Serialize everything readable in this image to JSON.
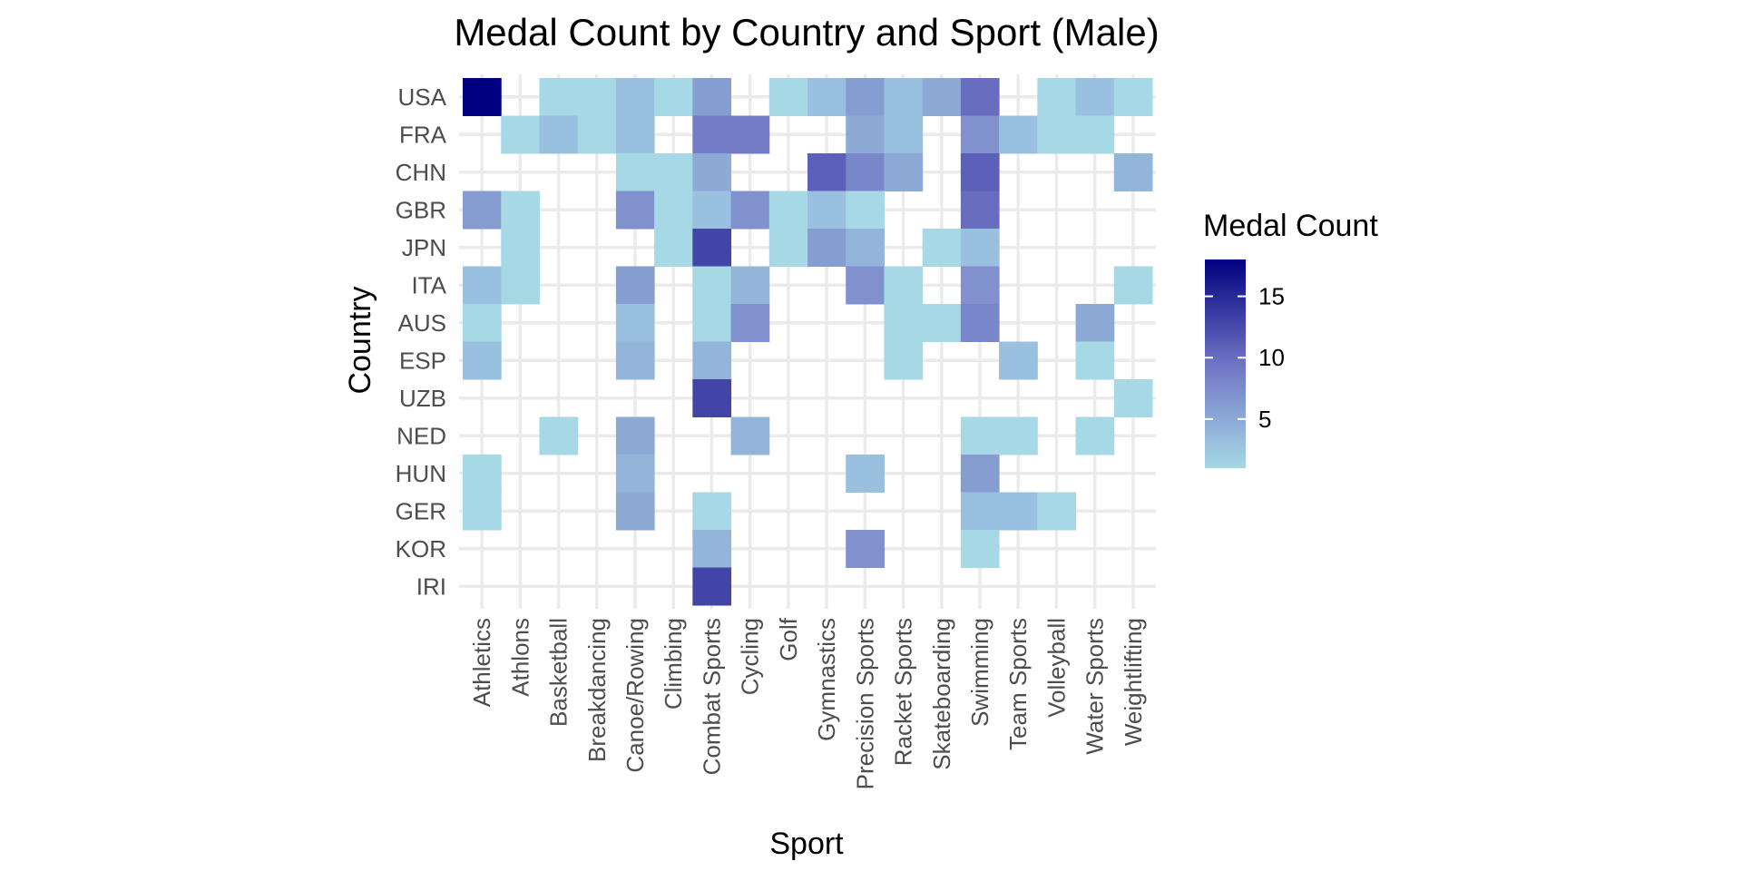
{
  "chart_data": {
    "type": "heatmap",
    "title": "Medal Count by Country and Sport (Male)",
    "xlabel": "Sport",
    "ylabel": "Country",
    "x": [
      "Athletics",
      "Athlons",
      "Basketball",
      "Breakdancing",
      "Canoe/Rowing",
      "Climbing",
      "Combat Sports",
      "Cycling",
      "Golf",
      "Gymnastics",
      "Precision Sports",
      "Racket Sports",
      "Skateboarding",
      "Swimming",
      "Team Sports",
      "Volleyball",
      "Water Sports",
      "Weightlifting"
    ],
    "y": [
      "USA",
      "FRA",
      "CHN",
      "GBR",
      "JPN",
      "ITA",
      "AUS",
      "ESP",
      "UZB",
      "NED",
      "HUN",
      "GER",
      "KOR",
      "IRI"
    ],
    "cells": [
      {
        "country": "USA",
        "sport": "Athletics",
        "value": 18
      },
      {
        "country": "USA",
        "sport": "Basketball",
        "value": 1
      },
      {
        "country": "USA",
        "sport": "Breakdancing",
        "value": 1
      },
      {
        "country": "USA",
        "sport": "Canoe/Rowing",
        "value": 3
      },
      {
        "country": "USA",
        "sport": "Climbing",
        "value": 1
      },
      {
        "country": "USA",
        "sport": "Combat Sports",
        "value": 6
      },
      {
        "country": "USA",
        "sport": "Golf",
        "value": 1
      },
      {
        "country": "USA",
        "sport": "Gymnastics",
        "value": 3
      },
      {
        "country": "USA",
        "sport": "Precision Sports",
        "value": 6
      },
      {
        "country": "USA",
        "sport": "Racket Sports",
        "value": 3
      },
      {
        "country": "USA",
        "sport": "Skateboarding",
        "value": 5
      },
      {
        "country": "USA",
        "sport": "Swimming",
        "value": 10
      },
      {
        "country": "USA",
        "sport": "Volleyball",
        "value": 1
      },
      {
        "country": "USA",
        "sport": "Water Sports",
        "value": 3
      },
      {
        "country": "USA",
        "sport": "Weightlifting",
        "value": 1
      },
      {
        "country": "FRA",
        "sport": "Athlons",
        "value": 1
      },
      {
        "country": "FRA",
        "sport": "Basketball",
        "value": 3
      },
      {
        "country": "FRA",
        "sport": "Breakdancing",
        "value": 1
      },
      {
        "country": "FRA",
        "sport": "Canoe/Rowing",
        "value": 3
      },
      {
        "country": "FRA",
        "sport": "Combat Sports",
        "value": 9
      },
      {
        "country": "FRA",
        "sport": "Cycling",
        "value": 9
      },
      {
        "country": "FRA",
        "sport": "Precision Sports",
        "value": 5
      },
      {
        "country": "FRA",
        "sport": "Racket Sports",
        "value": 3
      },
      {
        "country": "FRA",
        "sport": "Swimming",
        "value": 7
      },
      {
        "country": "FRA",
        "sport": "Team Sports",
        "value": 3
      },
      {
        "country": "FRA",
        "sport": "Volleyball",
        "value": 1
      },
      {
        "country": "FRA",
        "sport": "Water Sports",
        "value": 1
      },
      {
        "country": "CHN",
        "sport": "Canoe/Rowing",
        "value": 1
      },
      {
        "country": "CHN",
        "sport": "Climbing",
        "value": 1
      },
      {
        "country": "CHN",
        "sport": "Combat Sports",
        "value": 5
      },
      {
        "country": "CHN",
        "sport": "Gymnastics",
        "value": 11
      },
      {
        "country": "CHN",
        "sport": "Precision Sports",
        "value": 8
      },
      {
        "country": "CHN",
        "sport": "Racket Sports",
        "value": 5
      },
      {
        "country": "CHN",
        "sport": "Swimming",
        "value": 11
      },
      {
        "country": "CHN",
        "sport": "Weightlifting",
        "value": 4
      },
      {
        "country": "GBR",
        "sport": "Athletics",
        "value": 6
      },
      {
        "country": "GBR",
        "sport": "Athlons",
        "value": 1
      },
      {
        "country": "GBR",
        "sport": "Canoe/Rowing",
        "value": 7
      },
      {
        "country": "GBR",
        "sport": "Climbing",
        "value": 1
      },
      {
        "country": "GBR",
        "sport": "Combat Sports",
        "value": 3
      },
      {
        "country": "GBR",
        "sport": "Cycling",
        "value": 7
      },
      {
        "country": "GBR",
        "sport": "Golf",
        "value": 1
      },
      {
        "country": "GBR",
        "sport": "Gymnastics",
        "value": 3
      },
      {
        "country": "GBR",
        "sport": "Precision Sports",
        "value": 1
      },
      {
        "country": "GBR",
        "sport": "Swimming",
        "value": 10
      },
      {
        "country": "JPN",
        "sport": "Athlons",
        "value": 1
      },
      {
        "country": "JPN",
        "sport": "Climbing",
        "value": 1
      },
      {
        "country": "JPN",
        "sport": "Combat Sports",
        "value": 13
      },
      {
        "country": "JPN",
        "sport": "Golf",
        "value": 1
      },
      {
        "country": "JPN",
        "sport": "Gymnastics",
        "value": 6
      },
      {
        "country": "JPN",
        "sport": "Precision Sports",
        "value": 4
      },
      {
        "country": "JPN",
        "sport": "Skateboarding",
        "value": 1
      },
      {
        "country": "JPN",
        "sport": "Swimming",
        "value": 3
      },
      {
        "country": "ITA",
        "sport": "Athletics",
        "value": 3
      },
      {
        "country": "ITA",
        "sport": "Athlons",
        "value": 1
      },
      {
        "country": "ITA",
        "sport": "Canoe/Rowing",
        "value": 6
      },
      {
        "country": "ITA",
        "sport": "Combat Sports",
        "value": 1
      },
      {
        "country": "ITA",
        "sport": "Cycling",
        "value": 4
      },
      {
        "country": "ITA",
        "sport": "Precision Sports",
        "value": 7
      },
      {
        "country": "ITA",
        "sport": "Racket Sports",
        "value": 1
      },
      {
        "country": "ITA",
        "sport": "Swimming",
        "value": 7
      },
      {
        "country": "ITA",
        "sport": "Weightlifting",
        "value": 1
      },
      {
        "country": "AUS",
        "sport": "Athletics",
        "value": 1
      },
      {
        "country": "AUS",
        "sport": "Canoe/Rowing",
        "value": 3
      },
      {
        "country": "AUS",
        "sport": "Combat Sports",
        "value": 1
      },
      {
        "country": "AUS",
        "sport": "Cycling",
        "value": 7
      },
      {
        "country": "AUS",
        "sport": "Racket Sports",
        "value": 1
      },
      {
        "country": "AUS",
        "sport": "Skateboarding",
        "value": 1
      },
      {
        "country": "AUS",
        "sport": "Swimming",
        "value": 8
      },
      {
        "country": "AUS",
        "sport": "Water Sports",
        "value": 5
      },
      {
        "country": "ESP",
        "sport": "Athletics",
        "value": 3
      },
      {
        "country": "ESP",
        "sport": "Canoe/Rowing",
        "value": 4
      },
      {
        "country": "ESP",
        "sport": "Combat Sports",
        "value": 4
      },
      {
        "country": "ESP",
        "sport": "Racket Sports",
        "value": 1
      },
      {
        "country": "ESP",
        "sport": "Team Sports",
        "value": 3
      },
      {
        "country": "ESP",
        "sport": "Water Sports",
        "value": 1
      },
      {
        "country": "UZB",
        "sport": "Combat Sports",
        "value": 13
      },
      {
        "country": "UZB",
        "sport": "Weightlifting",
        "value": 1
      },
      {
        "country": "NED",
        "sport": "Basketball",
        "value": 1
      },
      {
        "country": "NED",
        "sport": "Canoe/Rowing",
        "value": 5
      },
      {
        "country": "NED",
        "sport": "Cycling",
        "value": 4
      },
      {
        "country": "NED",
        "sport": "Swimming",
        "value": 1
      },
      {
        "country": "NED",
        "sport": "Team Sports",
        "value": 1
      },
      {
        "country": "NED",
        "sport": "Water Sports",
        "value": 1
      },
      {
        "country": "HUN",
        "sport": "Athletics",
        "value": 1
      },
      {
        "country": "HUN",
        "sport": "Canoe/Rowing",
        "value": 4
      },
      {
        "country": "HUN",
        "sport": "Precision Sports",
        "value": 3
      },
      {
        "country": "HUN",
        "sport": "Swimming",
        "value": 6
      },
      {
        "country": "GER",
        "sport": "Athletics",
        "value": 1
      },
      {
        "country": "GER",
        "sport": "Canoe/Rowing",
        "value": 5
      },
      {
        "country": "GER",
        "sport": "Combat Sports",
        "value": 1
      },
      {
        "country": "GER",
        "sport": "Swimming",
        "value": 3
      },
      {
        "country": "GER",
        "sport": "Team Sports",
        "value": 3
      },
      {
        "country": "GER",
        "sport": "Volleyball",
        "value": 1
      },
      {
        "country": "KOR",
        "sport": "Combat Sports",
        "value": 4
      },
      {
        "country": "KOR",
        "sport": "Precision Sports",
        "value": 7
      },
      {
        "country": "KOR",
        "sport": "Swimming",
        "value": 1
      },
      {
        "country": "IRI",
        "sport": "Combat Sports",
        "value": 13
      }
    ],
    "color_scale": {
      "low": "#a6d8e6",
      "mid": "#7074c4",
      "high": "#000080",
      "min": 1,
      "max": 18
    },
    "legend": {
      "title": "Medal Count",
      "position": "right",
      "ticks": [
        5,
        10,
        15
      ]
    },
    "grid": true
  }
}
